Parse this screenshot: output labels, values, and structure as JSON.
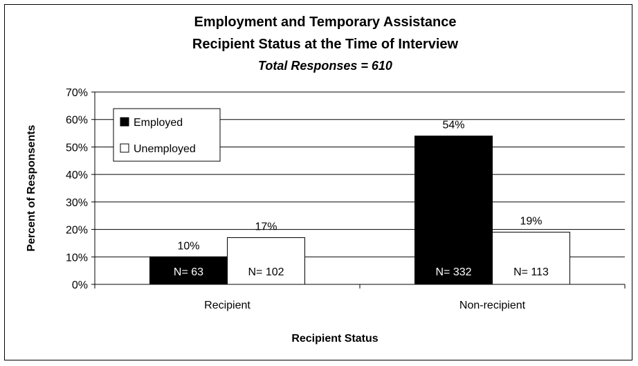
{
  "chart_data": {
    "type": "bar",
    "title_lines": [
      "Employment and Temporary Assistance",
      "Recipient Status at the Time of Interview"
    ],
    "subtitle": "Total Responses = 610",
    "xlabel": "Recipient Status",
    "ylabel": "Percent of Responsents",
    "categories": [
      "Recipient",
      "Non-recipient"
    ],
    "ylim": [
      0,
      70
    ],
    "yticks": [
      "0%",
      "10%",
      "20%",
      "30%",
      "40%",
      "50%",
      "60%",
      "70%"
    ],
    "grid": true,
    "legend_position": "top-left",
    "series": [
      {
        "name": "Employed",
        "values": [
          10,
          54
        ],
        "value_labels": [
          "10%",
          "54%"
        ],
        "n_labels": [
          "N= 63",
          "N= 332"
        ],
        "fill": "#000000",
        "text_color": "#ffffff"
      },
      {
        "name": "Unemployed",
        "values": [
          17,
          19
        ],
        "value_labels": [
          "17%",
          "19%"
        ],
        "n_labels": [
          "N= 102",
          "N= 113"
        ],
        "fill": "#ffffff",
        "text_color": "#000000"
      }
    ]
  }
}
